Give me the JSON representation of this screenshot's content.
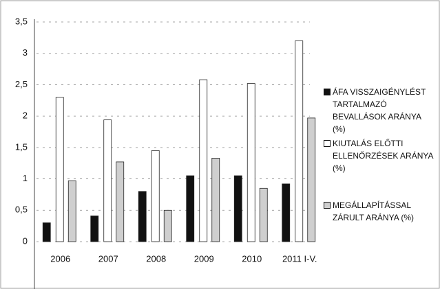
{
  "chart_data": {
    "type": "bar",
    "categories": [
      "2006",
      "2007",
      "2008",
      "2009",
      "2010",
      "2011 I-V."
    ],
    "series": [
      {
        "name": "ÁFA VISSZAIGÉNYLÉST TARTALMAZÓ BEVALLÁSOK ARÁNYA (%)",
        "color": "#111111",
        "values": [
          0.3,
          0.41,
          0.8,
          1.05,
          1.05,
          0.92
        ]
      },
      {
        "name": "KIUTALÁS ELŐTTI ELLENŐRZÉSEK ARÁNYA (%)",
        "color": "#ffffff",
        "values": [
          2.3,
          1.94,
          1.45,
          2.58,
          2.52,
          3.2
        ]
      },
      {
        "name": "MEGÁLLAPÍTÁSSAL ZÁRULT ARÁNYA (%)",
        "color": "#cfcfcf",
        "values": [
          0.97,
          1.27,
          0.5,
          1.33,
          0.85,
          1.97
        ]
      }
    ],
    "ylim": [
      0,
      3.5
    ],
    "yticks": [
      0,
      {
        "value": 0.5,
        "label": "0,5"
      },
      1,
      {
        "value": 1.5,
        "label": "1,5"
      },
      2,
      {
        "value": 2.5,
        "label": "2,5"
      },
      3,
      {
        "value": 3.5,
        "label": "3,5"
      }
    ],
    "grid": true,
    "legend": "right"
  }
}
